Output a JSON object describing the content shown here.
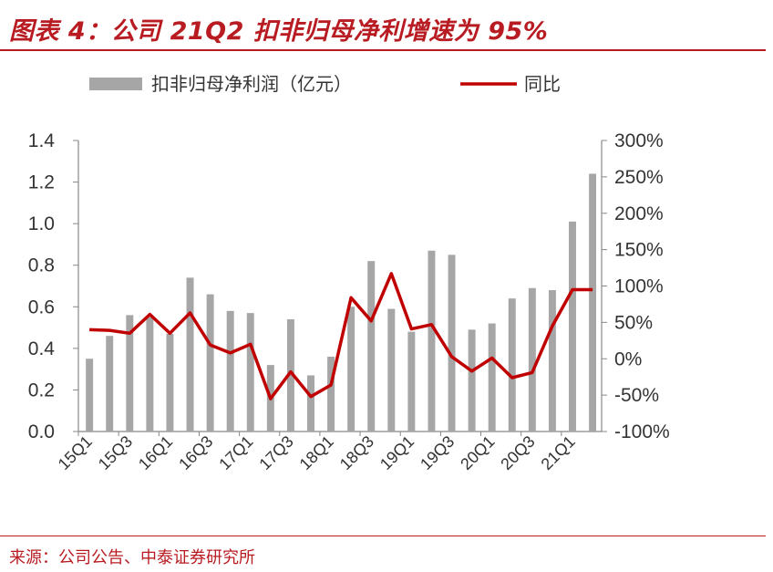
{
  "header": {
    "title": "图表 4：公司 21Q2 扣非归母净利增速为 95%"
  },
  "footer": {
    "source": "来源：公司公告、中泰证券研究所"
  },
  "colors": {
    "accent": "#b81c22",
    "bar": "#a6a6a6",
    "line": "#c00000",
    "axis": "#888888"
  },
  "chart_data": {
    "type": "bar",
    "categories": [
      "15Q1",
      "15Q2",
      "15Q3",
      "15Q4",
      "16Q1",
      "16Q2",
      "16Q3",
      "16Q4",
      "17Q1",
      "17Q2",
      "17Q3",
      "17Q4",
      "18Q1",
      "18Q2",
      "18Q3",
      "18Q4",
      "19Q1",
      "19Q2",
      "19Q3",
      "19Q4",
      "20Q1",
      "20Q2",
      "20Q3",
      "20Q4",
      "21Q1",
      "21Q2"
    ],
    "x_tick_labels": [
      "15Q1",
      "15Q3",
      "16Q1",
      "16Q3",
      "17Q1",
      "17Q3",
      "18Q1",
      "18Q3",
      "19Q1",
      "19Q3",
      "20Q1",
      "20Q3",
      "21Q1"
    ],
    "series": [
      {
        "name": "扣非归母净利润（亿元）",
        "type": "bar",
        "axis": "left",
        "values": [
          0.35,
          0.46,
          0.56,
          0.55,
          0.47,
          0.74,
          0.66,
          0.58,
          0.57,
          0.32,
          0.54,
          0.27,
          0.36,
          0.6,
          0.82,
          0.59,
          0.48,
          0.87,
          0.85,
          0.49,
          0.52,
          0.64,
          0.69,
          0.68,
          1.01,
          1.24
        ]
      },
      {
        "name": "同比",
        "type": "line",
        "axis": "right",
        "unit": "%",
        "values": [
          40,
          39,
          35,
          61,
          35,
          63,
          19,
          8,
          20,
          -55,
          -18,
          -52,
          -36,
          84,
          52,
          117,
          41,
          47,
          3,
          -17,
          1,
          -26,
          -19,
          45,
          95,
          95
        ]
      }
    ],
    "y_left": {
      "lim": [
        0,
        1.4
      ],
      "ticks": [
        "0.0",
        "0.2",
        "0.4",
        "0.6",
        "0.8",
        "1.0",
        "1.2",
        "1.4"
      ]
    },
    "y_right": {
      "lim": [
        -100,
        300
      ],
      "ticks": [
        "-100%",
        "-50%",
        "0%",
        "50%",
        "100%",
        "150%",
        "200%",
        "250%",
        "300%"
      ]
    },
    "legend": "top",
    "grid": false
  }
}
